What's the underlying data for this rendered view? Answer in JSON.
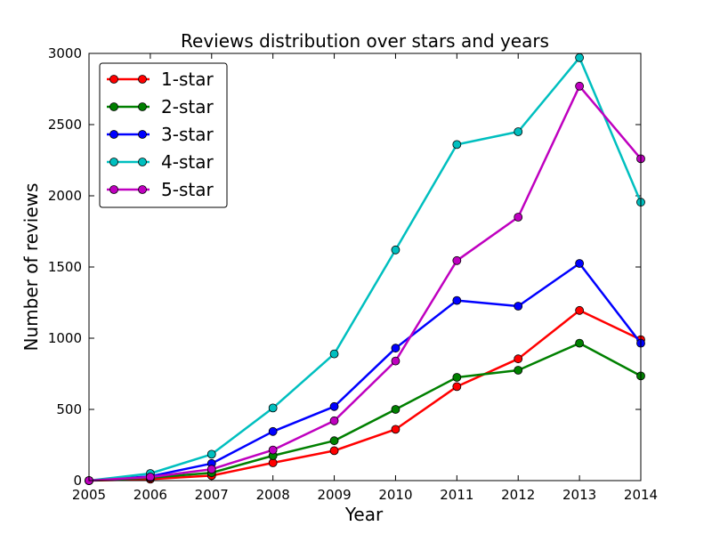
{
  "chart_data": {
    "type": "line",
    "title": "Reviews distribution over stars and years",
    "xlabel": "Year",
    "ylabel": "Number of reviews",
    "x": [
      2005,
      2006,
      2007,
      2008,
      2009,
      2010,
      2011,
      2012,
      2013,
      2014
    ],
    "xlim": [
      2005,
      2014
    ],
    "ylim": [
      0,
      3000
    ],
    "xticks": [
      "2005",
      "2006",
      "2007",
      "2008",
      "2009",
      "2010",
      "2011",
      "2012",
      "2013",
      "2014"
    ],
    "yticks": [
      "0",
      "500",
      "1000",
      "1500",
      "2000",
      "2500",
      "3000"
    ],
    "grid": false,
    "legend_position": "top-left",
    "series": [
      {
        "name": "1-star",
        "color": "#ff0000",
        "values": [
          0,
          10,
          35,
          125,
          210,
          360,
          660,
          855,
          1195,
          990
        ]
      },
      {
        "name": "2-star",
        "color": "#008000",
        "values": [
          0,
          20,
          55,
          175,
          280,
          500,
          725,
          775,
          965,
          735
        ]
      },
      {
        "name": "3-star",
        "color": "#0000ff",
        "values": [
          0,
          30,
          120,
          345,
          520,
          930,
          1265,
          1225,
          1525,
          965
        ]
      },
      {
        "name": "4-star",
        "color": "#00bfbf",
        "values": [
          0,
          50,
          185,
          510,
          890,
          1620,
          2360,
          2450,
          2970,
          1955
        ]
      },
      {
        "name": "5-star",
        "color": "#bf00bf",
        "values": [
          0,
          25,
          80,
          215,
          420,
          840,
          1545,
          1850,
          2770,
          2260
        ]
      }
    ]
  }
}
